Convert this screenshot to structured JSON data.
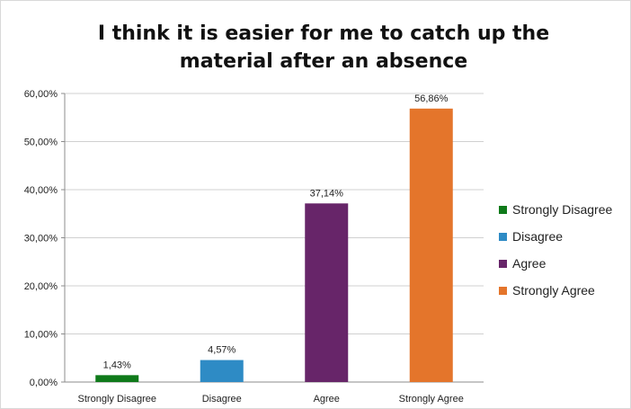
{
  "chart_data": {
    "type": "bar",
    "title": "I think it is easier for me to catch up the material after an absence",
    "categories": [
      "Strongly Disagree",
      "Disagree",
      "Agree",
      "Strongly Agree"
    ],
    "values": [
      1.43,
      4.57,
      37.14,
      56.86
    ],
    "value_labels": [
      "1,43%",
      "4,57%",
      "37,14%",
      "56,86%"
    ],
    "colors": [
      "#0f7a1a",
      "#2e8bc5",
      "#672569",
      "#e4752b"
    ],
    "ylim": [
      0,
      60
    ],
    "yticks": [
      0,
      10,
      20,
      30,
      40,
      50,
      60
    ],
    "ytick_labels": [
      "0,00%",
      "10,00%",
      "20,00%",
      "30,00%",
      "40,00%",
      "50,00%",
      "60,00%"
    ],
    "grid": "horizontal",
    "legend_position": "right",
    "legend": [
      "Strongly Disagree",
      "Disagree",
      "Agree",
      "Strongly Agree"
    ]
  }
}
